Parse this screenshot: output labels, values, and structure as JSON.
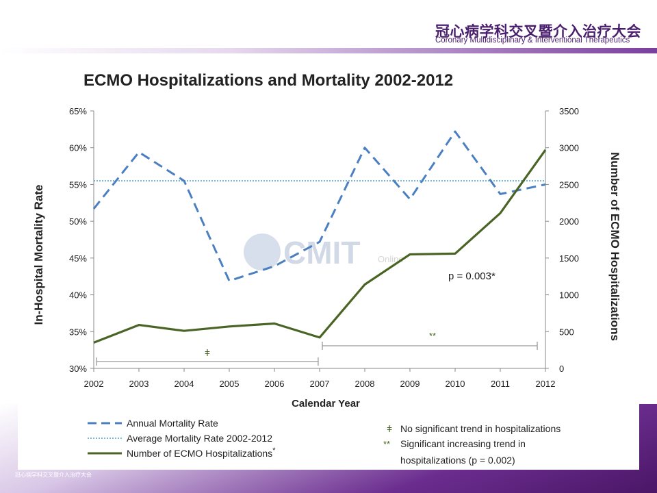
{
  "header": {
    "cn_title": "冠心病学科交叉暨介入治疗大会",
    "en_title": "Coronary Multidisciplinary & Interventional Therapeutics"
  },
  "watermark": {
    "text": "CMIT",
    "sub": "Online"
  },
  "chart_data": {
    "type": "line",
    "title": "ECMO Hospitalizations and Mortality 2002-2012",
    "xlabel": "Calendar Year",
    "ylabel_left": "In-Hospital Mortality Rate",
    "ylabel_right": "Number of ECMO Hospitalizations",
    "x": [
      2002,
      2003,
      2004,
      2005,
      2006,
      2007,
      2008,
      2009,
      2010,
      2011,
      2012
    ],
    "ylim_left": [
      30,
      65
    ],
    "yticks_left": [
      "30%",
      "35%",
      "40%",
      "45%",
      "50%",
      "55%",
      "60%",
      "65%"
    ],
    "ylim_right": [
      0,
      3500
    ],
    "yticks_right": [
      "0",
      "500",
      "1000",
      "1500",
      "2000",
      "2500",
      "3000",
      "3500"
    ],
    "series": [
      {
        "name": "Annual Mortality Rate",
        "axis": "left",
        "style": "dashed",
        "color": "#4a7fc1",
        "values": [
          51.7,
          59.4,
          55.5,
          41.9,
          43.9,
          47.2,
          60.0,
          53.0,
          62.2,
          53.7,
          55.0
        ]
      },
      {
        "name": "Average Mortality Rate 2002-2012",
        "axis": "left",
        "style": "dotted",
        "color": "#4a9fd8",
        "values": [
          55.5,
          55.5,
          55.5,
          55.5,
          55.5,
          55.5,
          55.5,
          55.5,
          55.5,
          55.5,
          55.5
        ]
      },
      {
        "name": "Number of ECMO Hospitalizations",
        "axis": "right",
        "style": "solid",
        "color": "#4a6425",
        "values": [
          350,
          590,
          510,
          570,
          610,
          420,
          1140,
          1550,
          1560,
          2110,
          2970
        ]
      }
    ],
    "legend_marker": "*",
    "annotations": {
      "p_value": "p = 0.003*",
      "bracket_left_symbol": "ǂ",
      "bracket_left_range": [
        2002,
        2007
      ],
      "bracket_right_symbol": "**",
      "bracket_right_range": [
        2007,
        2012
      ],
      "note1_symbol": "ǂ",
      "note1_text": "No significant trend in hospitalizations",
      "note2_symbol": "**",
      "note2_text_line1": "Significant increasing trend in",
      "note2_text_line2": "hospitalizations (p = 0.002)"
    }
  }
}
